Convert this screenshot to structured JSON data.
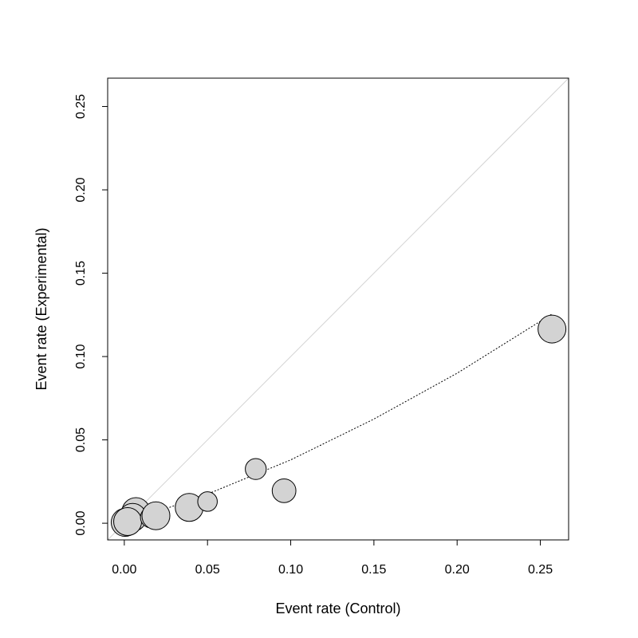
{
  "chart_data": {
    "type": "scatter",
    "xlabel": "Event rate (Control)",
    "ylabel": "Event rate (Experimental)",
    "xlim": [
      -0.01,
      0.267
    ],
    "ylim": [
      -0.01,
      0.267
    ],
    "x_ticks": [
      "0.00",
      "0.05",
      "0.10",
      "0.15",
      "0.20",
      "0.25"
    ],
    "y_ticks": [
      "0.00",
      "0.05",
      "0.10",
      "0.15",
      "0.20",
      "0.25"
    ],
    "point_fill": "#d3d3d3",
    "point_stroke": "#000000",
    "identity_line_color": "#d3d3d3",
    "fit_line_color": "#000000",
    "points": [
      {
        "x": 0.0005,
        "y": 0.0005,
        "weight": 1.0
      },
      {
        "x": 0.007,
        "y": 0.007,
        "weight": 1.0
      },
      {
        "x": 0.005,
        "y": 0.0035,
        "weight": 1.0
      },
      {
        "x": 0.002,
        "y": 0.001,
        "weight": 1.0
      },
      {
        "x": 0.016,
        "y": 0.0035,
        "weight": 0.75
      },
      {
        "x": 0.019,
        "y": 0.0045,
        "weight": 1.0
      },
      {
        "x": 0.039,
        "y": 0.0095,
        "weight": 1.0
      },
      {
        "x": 0.05,
        "y": 0.013,
        "weight": 0.7
      },
      {
        "x": 0.079,
        "y": 0.0325,
        "weight": 0.75
      },
      {
        "x": 0.096,
        "y": 0.0195,
        "weight": 0.85
      },
      {
        "x": 0.257,
        "y": 0.1165,
        "weight": 1.0
      }
    ],
    "fit_line": [
      {
        "x": 0.0,
        "y": 0.0
      },
      {
        "x": 0.05,
        "y": 0.0175
      },
      {
        "x": 0.1,
        "y": 0.038
      },
      {
        "x": 0.15,
        "y": 0.0625
      },
      {
        "x": 0.2,
        "y": 0.09
      },
      {
        "x": 0.257,
        "y": 0.1255
      }
    ],
    "grid": false
  }
}
